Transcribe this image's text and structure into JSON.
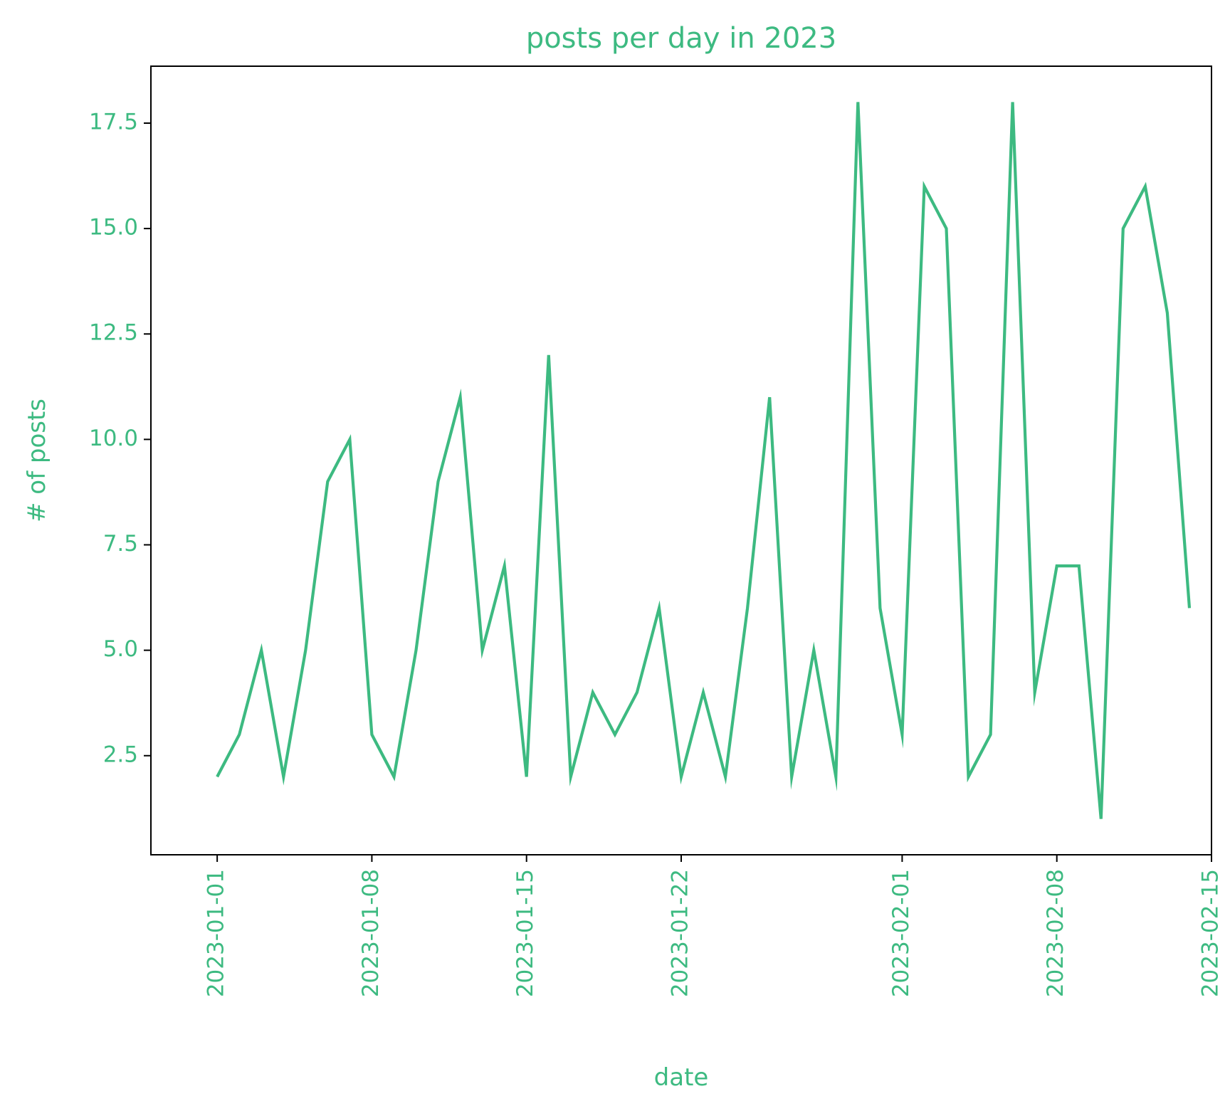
{
  "colors": {
    "accent": "#3dba81",
    "axes": "#000000",
    "background": "#ffffff"
  },
  "chart_data": {
    "type": "line",
    "title": "posts per day in 2023",
    "xlabel": "date",
    "ylabel": "# of posts",
    "grid": false,
    "legend": "none",
    "xlim": [
      "2022-12-29",
      "2023-02-15"
    ],
    "ylim": [
      0.15,
      18.85
    ],
    "x_ticks": [
      "2023-01-01",
      "2023-01-08",
      "2023-01-15",
      "2023-01-22",
      "2023-02-01",
      "2023-02-08",
      "2023-02-15"
    ],
    "y_ticks": [
      "2.5",
      "5.0",
      "7.5",
      "10.0",
      "12.5",
      "15.0",
      "17.5"
    ],
    "series": [
      {
        "x": [
          "2023-01-01",
          "2023-01-02",
          "2023-01-03",
          "2023-01-04",
          "2023-01-05",
          "2023-01-06",
          "2023-01-07",
          "2023-01-08",
          "2023-01-09",
          "2023-01-10",
          "2023-01-11",
          "2023-01-12",
          "2023-01-13",
          "2023-01-14",
          "2023-01-15",
          "2023-01-16",
          "2023-01-17",
          "2023-01-18",
          "2023-01-19",
          "2023-01-20",
          "2023-01-21",
          "2023-01-22",
          "2023-01-23",
          "2023-01-24",
          "2023-01-25",
          "2023-01-26",
          "2023-01-27",
          "2023-01-28",
          "2023-01-29",
          "2023-01-30",
          "2023-01-31",
          "2023-02-01",
          "2023-02-02",
          "2023-02-03",
          "2023-02-04",
          "2023-02-05",
          "2023-02-06",
          "2023-02-07",
          "2023-02-08",
          "2023-02-09",
          "2023-02-10",
          "2023-02-11",
          "2023-02-12",
          "2023-02-13",
          "2023-02-14"
        ],
        "values": [
          2,
          3,
          5,
          2,
          5,
          9,
          10,
          3,
          2,
          5,
          9,
          11,
          5,
          7,
          2,
          12,
          2,
          4,
          3,
          4,
          6,
          2,
          4,
          2,
          6,
          11,
          2,
          5,
          2,
          18,
          6,
          3,
          16,
          15,
          2,
          3,
          18,
          4,
          7,
          7,
          1,
          15,
          16,
          13,
          6
        ]
      }
    ]
  }
}
